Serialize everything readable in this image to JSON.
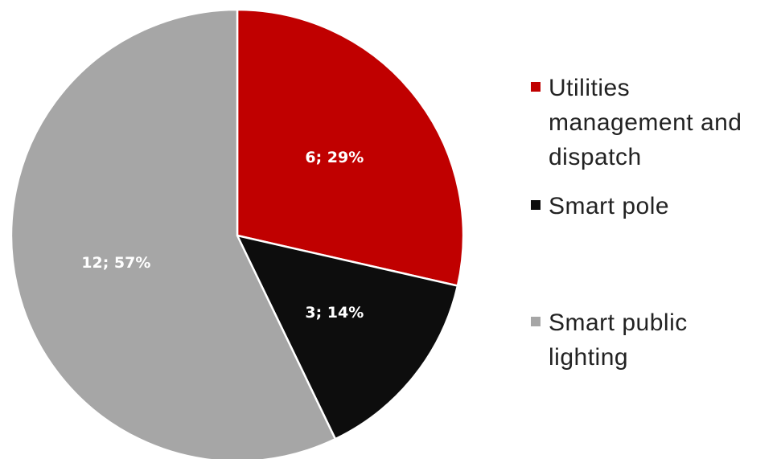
{
  "chart_data": {
    "type": "pie",
    "categories": [
      "Utilities management and dispatch",
      "Smart pole",
      "Smart public lighting"
    ],
    "values": [
      6,
      3,
      12
    ],
    "value_labels": [
      "6; 29%",
      "3; 14%",
      "12; 57%"
    ],
    "colors": [
      "#c00000",
      "#0d0d0d",
      "#a6a6a6"
    ],
    "legend": "right"
  }
}
